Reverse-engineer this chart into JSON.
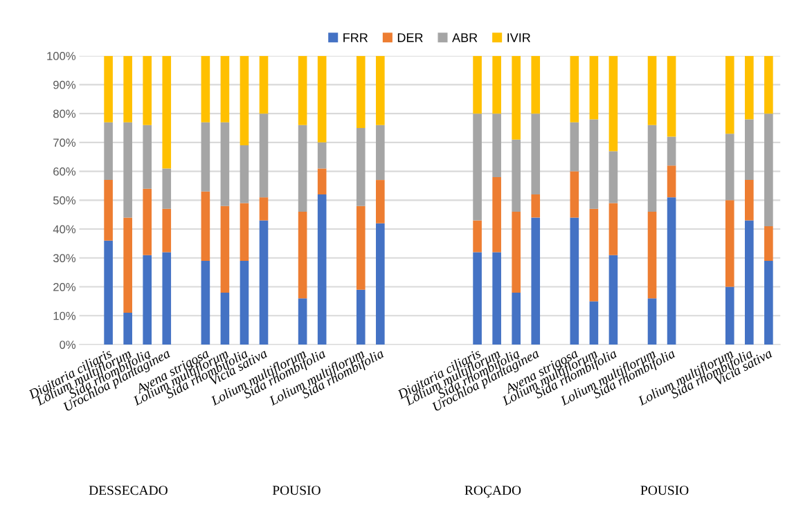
{
  "chart_data": {
    "type": "bar",
    "stacked": true,
    "grid": "y",
    "legend": "top",
    "categories": [
      "Digitaria ciliaris",
      "Lolium multiflorum",
      "Sida rhombifolia",
      "Urochloa plantaginea",
      null,
      "Avena strigosa",
      "Lolium multiflorum",
      "Sida rhombifolia",
      "Vicia sativa",
      null,
      "Lolium multiflorum",
      "Sida rhombifolia",
      null,
      "Lolium multiflorum",
      "Sida rhombifolia",
      null,
      null,
      null,
      null,
      "Digitaria ciliaris",
      "Lolium multiflorum",
      "Sida rhombifolia",
      "Urochloa plantaginea",
      null,
      "Avena strigosa",
      "Lolium multiflorum",
      "Sida rhombifolia",
      null,
      "Lolium multiflorum",
      "Sida rhombifolia",
      null,
      null,
      "Lolium multiflorum",
      "Sida rhombifolia",
      "Vicia sativa"
    ],
    "series": [
      {
        "name": "FRR",
        "color": "#4472c4",
        "values": [
          36,
          11,
          31,
          32,
          null,
          29,
          18,
          29,
          43,
          null,
          16,
          52,
          null,
          19,
          42,
          null,
          null,
          null,
          null,
          32,
          32,
          18,
          44,
          null,
          44,
          15,
          31,
          null,
          16,
          51,
          null,
          null,
          20,
          43,
          29
        ]
      },
      {
        "name": "DER",
        "color": "#ed7d31",
        "values": [
          21,
          33,
          23,
          15,
          null,
          24,
          30,
          20,
          8,
          null,
          30,
          9,
          null,
          29,
          15,
          null,
          null,
          null,
          null,
          11,
          26,
          28,
          8,
          null,
          16,
          32,
          18,
          null,
          30,
          11,
          null,
          null,
          30,
          14,
          12
        ]
      },
      {
        "name": "ABR",
        "color": "#a5a5a5",
        "values": [
          20,
          33,
          22,
          14,
          null,
          24,
          29,
          20,
          29,
          null,
          30,
          9,
          null,
          27,
          19,
          null,
          null,
          null,
          null,
          37,
          22,
          25,
          28,
          null,
          17,
          31,
          18,
          null,
          30,
          10,
          null,
          null,
          23,
          21,
          39
        ]
      },
      {
        "name": "IVIR",
        "color": "#ffc000",
        "values": [
          23,
          23,
          24,
          39,
          null,
          23,
          23,
          31,
          20,
          null,
          24,
          30,
          null,
          25,
          24,
          null,
          null,
          null,
          null,
          20,
          20,
          29,
          20,
          null,
          23,
          22,
          33,
          null,
          24,
          28,
          null,
          null,
          27,
          22,
          20
        ]
      }
    ],
    "ylim": [
      0,
      100
    ],
    "yticks": [
      {
        "value": 0,
        "label": "0%"
      },
      {
        "value": 10,
        "label": "10%"
      },
      {
        "value": 20,
        "label": "20%"
      },
      {
        "value": 30,
        "label": "30%"
      },
      {
        "value": 40,
        "label": "40%"
      },
      {
        "value": 50,
        "label": "50%"
      },
      {
        "value": 60,
        "label": "60%"
      },
      {
        "value": 70,
        "label": "70%"
      },
      {
        "value": 80,
        "label": "80%"
      },
      {
        "value": 90,
        "label": "90%"
      },
      {
        "value": 100,
        "label": "100%"
      }
    ],
    "annotations": [
      "DESSECADO",
      "POUSIO",
      "ROÇADO",
      "POUSIO"
    ]
  }
}
